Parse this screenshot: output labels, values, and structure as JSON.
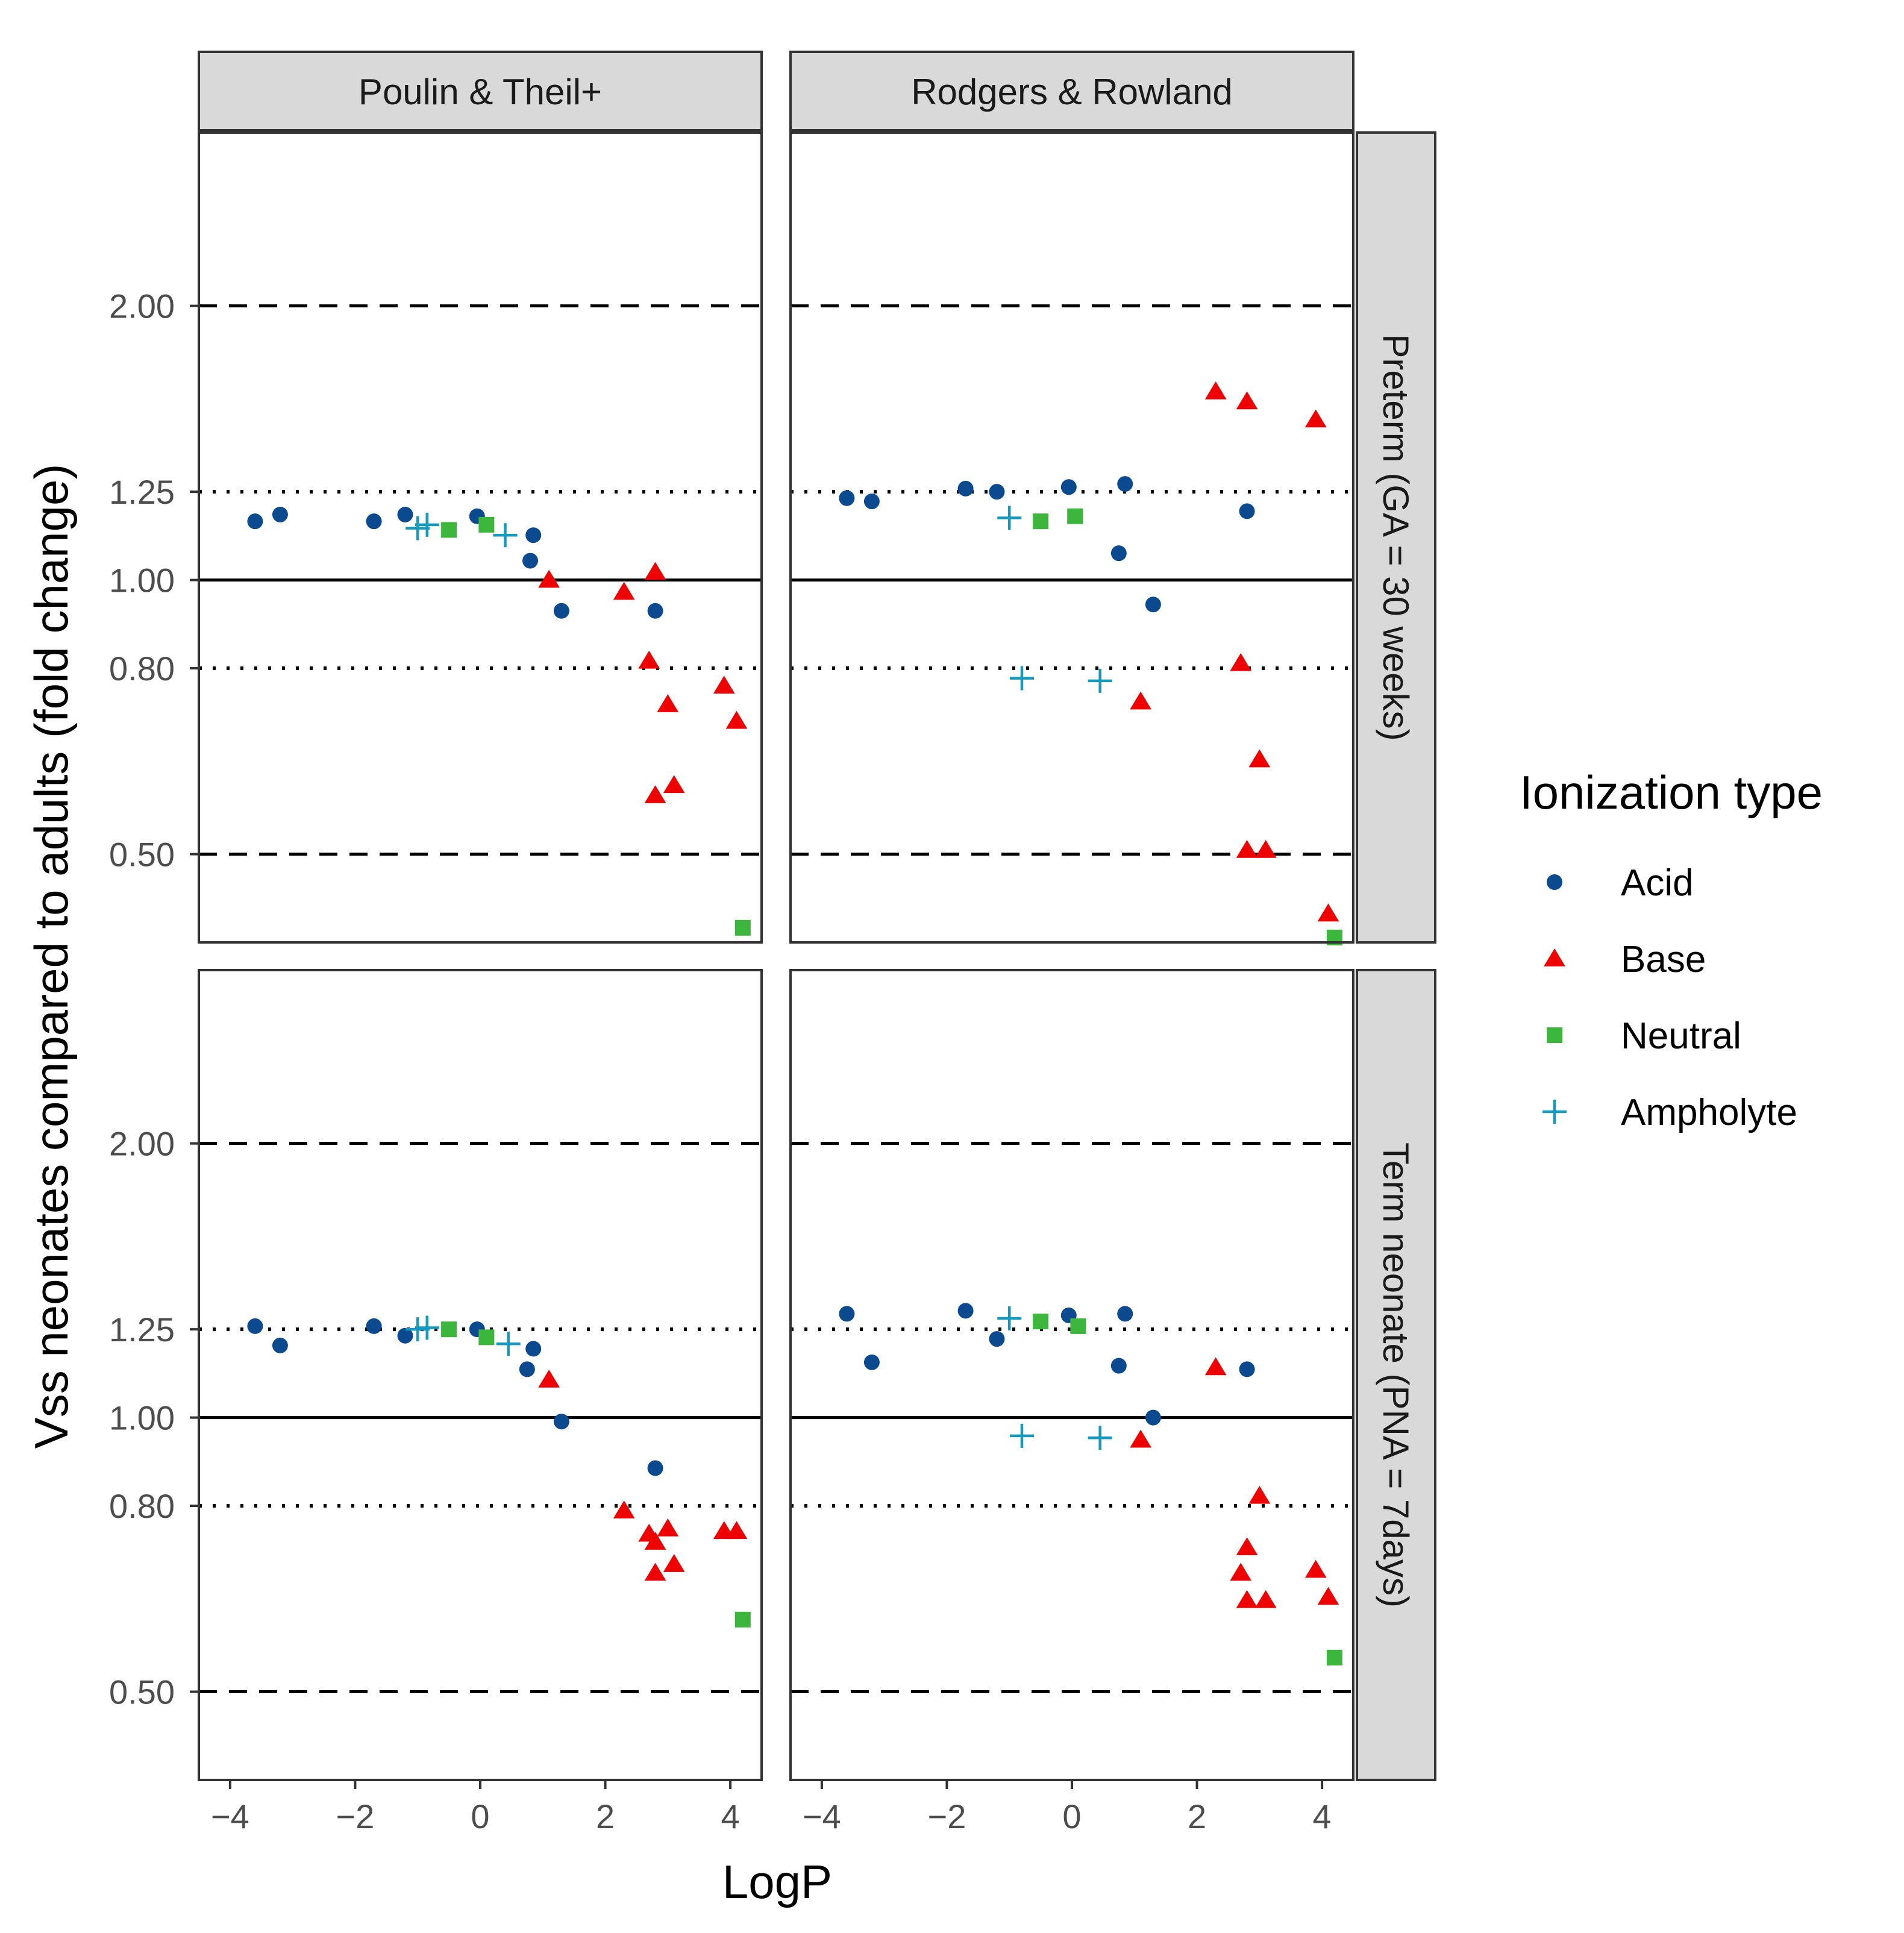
{
  "chart_data": {
    "type": "scatter",
    "xlabel": "LogP",
    "ylabel": "Vss neonates compared to adults (fold change)",
    "x_ticks": [
      "−4",
      "−2",
      "0",
      "2",
      "4"
    ],
    "x_tick_values": [
      -4,
      -2,
      0,
      2,
      4
    ],
    "xlim": [
      -4.5,
      4.5
    ],
    "y_scale": "log",
    "ylim": [
      0.4,
      3.1
    ],
    "y_ticks": [
      "0.50",
      "0.80",
      "1.00",
      "1.25",
      "2.00"
    ],
    "y_tick_values": [
      0.5,
      0.8,
      1.0,
      1.25,
      2.0
    ],
    "reference_lines": [
      {
        "y": 1.0,
        "style": "solid"
      },
      {
        "y": 0.8,
        "style": "dotted"
      },
      {
        "y": 1.25,
        "style": "dotted"
      },
      {
        "y": 0.5,
        "style": "dashed"
      },
      {
        "y": 2.0,
        "style": "dashed"
      }
    ],
    "facet_cols": [
      "Poulin & Theil+",
      "Rodgers & Rowland"
    ],
    "facet_rows": [
      "Preterm (GA = 30 weeks)",
      "Term neonate (PNA = 7days)"
    ],
    "legend": {
      "title": "Ionization type",
      "position": "right",
      "entries": [
        {
          "name": "Acid",
          "color": "#0b4a8f",
          "shape": "circle"
        },
        {
          "name": "Base",
          "color": "#ee0000",
          "shape": "triangle"
        },
        {
          "name": "Neutral",
          "color": "#3cb63c",
          "shape": "square"
        },
        {
          "name": "Ampholyte",
          "color": "#1599bc",
          "shape": "plus"
        }
      ]
    },
    "panels": [
      {
        "row": 0,
        "col": 0,
        "series": {
          "Acid": [
            [
              -3.6,
              1.16
            ],
            [
              -3.2,
              1.18
            ],
            [
              -1.7,
              1.16
            ],
            [
              -1.2,
              1.18
            ],
            [
              -0.05,
              1.175
            ],
            [
              0.8,
              1.05
            ],
            [
              0.85,
              1.12
            ],
            [
              1.3,
              0.925
            ],
            [
              2.8,
              0.925
            ]
          ],
          "Base": [
            [
              1.1,
              1.0
            ],
            [
              2.3,
              0.97
            ],
            [
              2.8,
              1.02
            ],
            [
              2.7,
              0.815
            ],
            [
              3.0,
              0.73
            ],
            [
              2.8,
              0.58
            ],
            [
              3.1,
              0.595
            ],
            [
              3.9,
              0.765
            ],
            [
              4.1,
              0.7
            ]
          ],
          "Neutral": [
            [
              -0.5,
              1.135
            ],
            [
              0.1,
              1.15
            ],
            [
              4.2,
              0.415
            ]
          ],
          "Ampholyte": [
            [
              -1.0,
              1.14
            ],
            [
              -0.85,
              1.15
            ],
            [
              0.4,
              1.12
            ]
          ]
        }
      },
      {
        "row": 0,
        "col": 1,
        "series": {
          "Acid": [
            [
              -3.6,
              1.23
            ],
            [
              -3.2,
              1.22
            ],
            [
              -1.7,
              1.26
            ],
            [
              -1.2,
              1.25
            ],
            [
              -0.05,
              1.265
            ],
            [
              0.75,
              1.07
            ],
            [
              0.85,
              1.275
            ],
            [
              1.3,
              0.94
            ],
            [
              2.8,
              1.19
            ]
          ],
          "Base": [
            [
              2.3,
              1.61
            ],
            [
              2.8,
              1.57
            ],
            [
              3.9,
              1.5
            ],
            [
              2.7,
              0.81
            ],
            [
              1.1,
              0.735
            ],
            [
              3.0,
              0.635
            ],
            [
              2.8,
              0.505
            ],
            [
              3.1,
              0.505
            ],
            [
              4.1,
              0.43
            ]
          ],
          "Neutral": [
            [
              -0.5,
              1.16
            ],
            [
              0.05,
              1.175
            ],
            [
              4.2,
              0.405
            ]
          ],
          "Ampholyte": [
            [
              -1.0,
              1.17
            ],
            [
              -0.8,
              0.78
            ],
            [
              0.45,
              0.775
            ]
          ]
        }
      },
      {
        "row": 1,
        "col": 0,
        "series": {
          "Acid": [
            [
              -3.6,
              1.26
            ],
            [
              -3.2,
              1.2
            ],
            [
              -1.7,
              1.26
            ],
            [
              -1.2,
              1.23
            ],
            [
              -0.05,
              1.25
            ],
            [
              0.75,
              1.13
            ],
            [
              0.85,
              1.19
            ],
            [
              1.3,
              0.99
            ],
            [
              2.8,
              0.88
            ]
          ],
          "Base": [
            [
              1.1,
              1.1
            ],
            [
              2.3,
              0.79
            ],
            [
              2.7,
              0.745
            ],
            [
              2.8,
              0.73
            ],
            [
              3.0,
              0.755
            ],
            [
              2.8,
              0.675
            ],
            [
              3.1,
              0.69
            ],
            [
              3.9,
              0.75
            ],
            [
              4.1,
              0.75
            ]
          ],
          "Neutral": [
            [
              -0.5,
              1.25
            ],
            [
              0.1,
              1.225
            ],
            [
              4.2,
              0.6
            ]
          ],
          "Ampholyte": [
            [
              -1.0,
              1.25
            ],
            [
              -0.85,
              1.255
            ],
            [
              0.45,
              1.205
            ]
          ]
        }
      },
      {
        "row": 1,
        "col": 1,
        "series": {
          "Acid": [
            [
              -3.6,
              1.3
            ],
            [
              -3.2,
              1.15
            ],
            [
              -1.7,
              1.31
            ],
            [
              -1.2,
              1.22
            ],
            [
              -0.05,
              1.295
            ],
            [
              0.75,
              1.14
            ],
            [
              0.85,
              1.3
            ],
            [
              1.3,
              1.0
            ],
            [
              2.8,
              1.13
            ]
          ],
          "Base": [
            [
              2.3,
              1.135
            ],
            [
              1.1,
              0.945
            ],
            [
              3.0,
              0.82
            ],
            [
              2.8,
              0.72
            ],
            [
              2.7,
              0.675
            ],
            [
              3.9,
              0.68
            ],
            [
              2.8,
              0.63
            ],
            [
              3.1,
              0.63
            ],
            [
              4.1,
              0.635
            ]
          ],
          "Neutral": [
            [
              -0.5,
              1.275
            ],
            [
              0.1,
              1.26
            ],
            [
              4.2,
              0.545
            ]
          ],
          "Ampholyte": [
            [
              -1.0,
              1.285
            ],
            [
              -0.8,
              0.955
            ],
            [
              0.45,
              0.95
            ]
          ]
        }
      }
    ]
  }
}
